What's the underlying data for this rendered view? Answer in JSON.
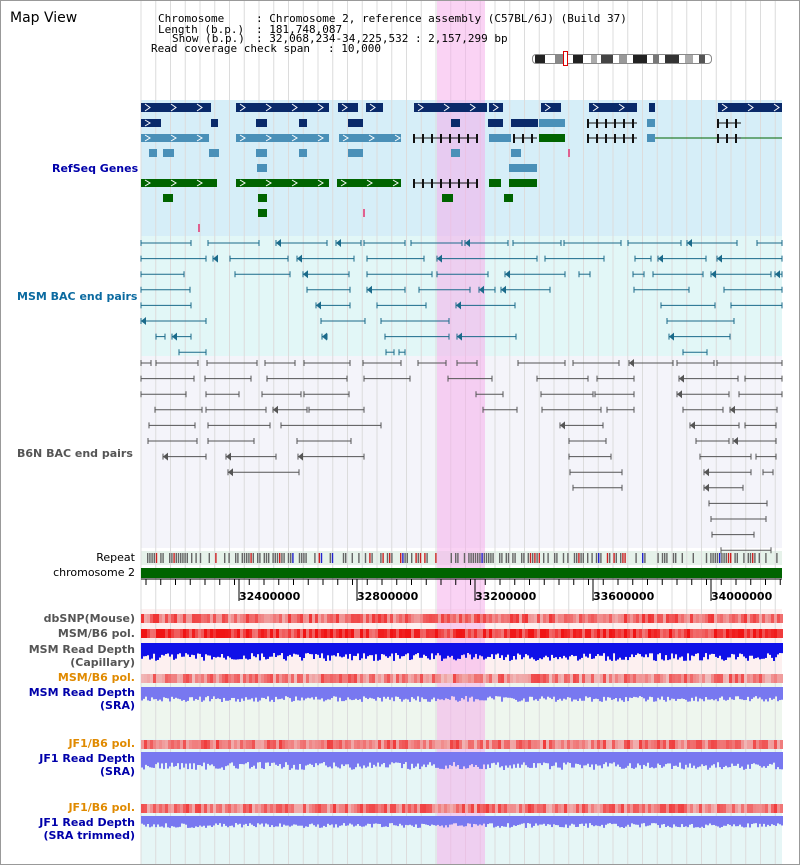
{
  "window": {
    "title": "Map View"
  },
  "info": {
    "chromosome_key": "Chromosome",
    "chromosome_val": ": Chromosome 2, reference assembly (C57BL/6J) (Build 37)",
    "length_key": "Length (b.p.)",
    "length_val": ": 181,748,087",
    "show_key": "Show (b.p.)",
    "show_val": ": 32,068,234-34,225,532 : 2,157,299 bp",
    "coverage_key": "Read coverage check span",
    "coverage_val": ": 10,000"
  },
  "tracks": {
    "refseq": "RefSeq Genes",
    "msm_bac": "MSM BAC end pairs",
    "b6n_bac": "B6N BAC end pairs",
    "repeat": "Repeat",
    "chromosome": "chromosome 2",
    "dbsnp": "dbSNP(Mouse)",
    "msm_b6_pol": "MSM/B6 pol.",
    "msm_depth_cap_1": "MSM Read Depth",
    "msm_depth_cap_2": "(Capillary)",
    "msm_b6_pol2": "MSM/B6 pol.",
    "msm_depth_sra_1": "MSM Read Depth",
    "msm_depth_sra_2": "(SRA)",
    "jf1_b6_pol": "JF1/B6 pol.",
    "jf1_depth_sra_1": "JF1 Read Depth",
    "jf1_depth_sra_2": "(SRA)",
    "jf1_b6_pol2": "JF1/B6 pol.",
    "jf1_depth_trim_1": "JF1 Read Depth",
    "jf1_depth_trim_2": "(SRA trimmed)"
  },
  "ruler": {
    "ticks": [
      "32400000",
      "32800000",
      "33200000",
      "33600000",
      "34000000"
    ]
  },
  "colors": {
    "refseq_dark": "#0a2a6a",
    "refseq_light": "#4a90b8",
    "refseq_green": "#006400",
    "msm_bac": "#1a6a8a",
    "b6n_bac": "#555555",
    "highlight": "#f7d6f3",
    "refseq_bg": "#d6eef8",
    "msm_bg": "#e2f7f7",
    "msm_label": "#0b6aa0",
    "b6n_label": "#555555",
    "depth_blue": "#1010e8",
    "depth_light": "#7878f0",
    "pol_red": "#e82020",
    "orange_label": "#e08a00",
    "navy_label": "#0000aa"
  }
}
